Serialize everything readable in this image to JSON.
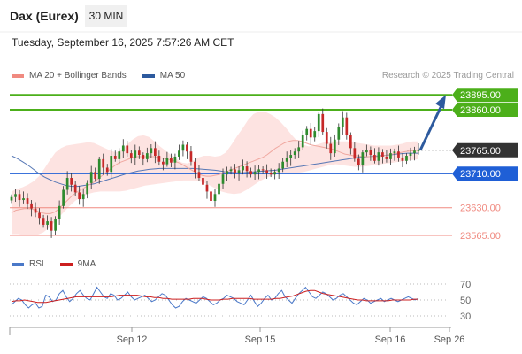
{
  "header": {
    "instrument": "Dax (Eurex)",
    "interval": "30 MIN",
    "timestamp": "Tuesday, September 16, 2025 7:57:26 AM CET"
  },
  "legend": [
    {
      "label": "MA 20 + Bollinger Bands",
      "color": "#f08a80"
    },
    {
      "label": "MA 50",
      "color": "#2d5a9e"
    }
  ],
  "credit": "Research © 2025 Trading Central",
  "colors": {
    "up": "#2e8b2e",
    "down": "#c62828",
    "band": "#fde3e1",
    "ma20": "#f0a8a0",
    "ma50": "#5677b5",
    "resistance": "#4caf1a",
    "support": "#1f5fd6",
    "minor_support": "#f08a80",
    "current": "#333333",
    "arrow": "#2d5a9e"
  },
  "chart_data": [
    {
      "type": "candlestick",
      "ylim": [
        23540,
        23910
      ],
      "x_labels": [
        "Sep 12",
        "Sep 15",
        "Sep 16",
        "Sep 26"
      ],
      "key_levels": [
        {
          "value": 23895,
          "label": "23895.00",
          "kind": "resistance"
        },
        {
          "value": 23860,
          "label": "23860.00",
          "kind": "resistance"
        },
        {
          "value": 23765,
          "label": "23765.00",
          "kind": "current"
        },
        {
          "value": 23710,
          "label": "23710.00",
          "kind": "support"
        },
        {
          "value": 23630,
          "label": "23630.00",
          "kind": "minor_support"
        },
        {
          "value": 23565,
          "label": "23565.00",
          "kind": "minor_support"
        }
      ],
      "close": [
        23655,
        23662,
        23648,
        23652,
        23640,
        23628,
        23618,
        23606,
        23590,
        23598,
        23576,
        23604,
        23634,
        23672,
        23700,
        23684,
        23666,
        23650,
        23662,
        23688,
        23714,
        23698,
        23744,
        23724,
        23714,
        23752,
        23744,
        23762,
        23776,
        23758,
        23748,
        23764,
        23754,
        23744,
        23758,
        23770,
        23752,
        23738,
        23732,
        23746,
        23736,
        23750,
        23764,
        23778,
        23762,
        23738,
        23714,
        23700,
        23684,
        23668,
        23646,
        23662,
        23686,
        23708,
        23716,
        23720,
        23712,
        23718,
        23727,
        23716,
        23708,
        23714,
        23720,
        23718,
        23712,
        23708,
        23714,
        23722,
        23738,
        23746,
        23754,
        23762,
        23772,
        23800,
        23815,
        23795,
        23810,
        23850,
        23808,
        23780,
        23758,
        23790,
        23820,
        23842,
        23800,
        23770,
        23745,
        23730,
        23760,
        23765,
        23754,
        23740,
        23760,
        23750,
        23744,
        23758,
        23762,
        23748,
        23740,
        23752,
        23758,
        23764,
        23765
      ],
      "ma20": [
        23618,
        23624,
        23626,
        23628,
        23628,
        23626,
        23622,
        23618,
        23616,
        23616,
        23620,
        23628,
        23638,
        23648,
        23658,
        23666,
        23672,
        23678,
        23684,
        23690,
        23698,
        23706,
        23714,
        23722,
        23730,
        23736,
        23740,
        23744,
        23748,
        23750,
        23750,
        23750,
        23750,
        23750,
        23748,
        23746,
        23744,
        23742,
        23738,
        23734,
        23728,
        23722,
        23716,
        23710,
        23706,
        23704,
        23704,
        23706,
        23708,
        23712,
        23716,
        23720,
        23724,
        23728,
        23732,
        23736,
        23740,
        23744,
        23748,
        23754,
        23762,
        23770,
        23776,
        23782,
        23786,
        23788,
        23788,
        23786,
        23782,
        23778,
        23776,
        23774,
        23772,
        23770,
        23768,
        23764,
        23760,
        23756,
        23754,
        23752,
        23752,
        23750,
        23750,
        23750,
        23750,
        23750,
        23752,
        23754,
        23756,
        23758,
        23760,
        23762,
        23763,
        23764,
        23765
      ],
      "bb_upper": [
        23668,
        23674,
        23678,
        23684,
        23692,
        23704,
        23722,
        23742,
        23760,
        23770,
        23776,
        23778,
        23780,
        23782,
        23784,
        23782,
        23776,
        23770,
        23764,
        23760,
        23766,
        23778,
        23790,
        23798,
        23800,
        23796,
        23786,
        23774,
        23764,
        23754,
        23744,
        23736,
        23734,
        23740,
        23748,
        23752,
        23752,
        23750,
        23752,
        23760,
        23778,
        23798,
        23816,
        23836,
        23850,
        23856,
        23856,
        23850,
        23842,
        23830,
        23816,
        23800,
        23786,
        23778,
        23774,
        23776,
        23780,
        23784,
        23786,
        23786,
        23786,
        23786,
        23784,
        23782,
        23780,
        23778,
        23776,
        23776,
        23776,
        23776,
        23778,
        23780,
        23784,
        23786,
        23786
      ],
      "bb_lower": [
        23568,
        23568,
        23566,
        23564,
        23566,
        23572,
        23584,
        23600,
        23616,
        23632,
        23646,
        23656,
        23662,
        23666,
        23668,
        23668,
        23668,
        23668,
        23670,
        23674,
        23678,
        23682,
        23684,
        23686,
        23688,
        23690,
        23692,
        23694,
        23694,
        23694,
        23690,
        23684,
        23676,
        23668,
        23664,
        23662,
        23664,
        23672,
        23682,
        23692,
        23700,
        23706,
        23710,
        23712,
        23712,
        23712,
        23714,
        23718,
        23722,
        23726,
        23730,
        23732,
        23730,
        23728,
        23726,
        23726,
        23728,
        23730,
        23732,
        23734,
        23736,
        23738,
        23740,
        23742,
        23744
      ],
      "ma50": [
        23752,
        23746,
        23738,
        23730,
        23720,
        23710,
        23702,
        23696,
        23690,
        23686,
        23682,
        23680,
        23680,
        23682,
        23684,
        23686,
        23690,
        23694,
        23698,
        23702,
        23706,
        23710,
        23713,
        23716,
        23718,
        23720,
        23721,
        23722,
        23722,
        23722,
        23722,
        23722,
        23722,
        23722,
        23721,
        23720,
        23719,
        23718,
        23716,
        23714,
        23713,
        23712,
        23712,
        23713,
        23714,
        23715,
        23716,
        23717,
        23718,
        23720,
        23722,
        23724,
        23726,
        23728,
        23730,
        23732,
        23734,
        23736,
        23738,
        23740,
        23742,
        23744,
        23746,
        23748,
        23749,
        23750,
        23751,
        23752,
        23753,
        23754,
        23756,
        23757,
        23758,
        23758,
        23758
      ]
    },
    {
      "type": "line",
      "ylim": [
        20,
        80
      ],
      "y_ticks": [
        70,
        50,
        30
      ],
      "series": [
        {
          "name": "RSI",
          "color": "#4a78c8",
          "values": [
            44,
            48,
            52,
            50,
            44,
            40,
            44,
            46,
            40,
            42,
            56,
            54,
            48,
            50,
            58,
            62,
            54,
            48,
            52,
            58,
            62,
            56,
            52,
            50,
            58,
            66,
            60,
            54,
            52,
            58,
            56,
            50,
            52,
            56,
            60,
            54,
            50,
            52,
            54,
            56,
            52,
            48,
            50,
            54,
            58,
            56,
            50,
            44,
            40,
            42,
            48,
            52,
            50,
            48,
            46,
            50,
            54,
            52,
            48,
            44,
            46,
            50,
            52,
            56,
            54,
            52,
            48,
            46,
            44,
            50,
            56,
            48,
            42,
            46,
            52,
            56,
            50,
            52,
            58,
            62,
            54,
            50,
            46,
            52,
            58,
            62,
            66,
            60,
            54,
            52,
            56,
            60,
            58,
            54,
            50,
            52,
            56,
            58,
            54,
            50,
            46,
            44,
            48,
            52,
            50,
            46,
            48,
            50,
            52,
            48,
            50,
            52,
            50,
            48,
            50,
            52,
            54,
            52,
            50,
            52
          ]
        },
        {
          "name": "9MA",
          "color": "#cc1f1f",
          "values": [
            48,
            49,
            49,
            50,
            49,
            48,
            47,
            47,
            47,
            48,
            49,
            50,
            51,
            52,
            53,
            54,
            54,
            54,
            54,
            54,
            54,
            54,
            54,
            54,
            55,
            56,
            56,
            56,
            56,
            56,
            55,
            54,
            54,
            53,
            53,
            52,
            52,
            51,
            51,
            51,
            51,
            51,
            52,
            52,
            52,
            51,
            50,
            50,
            50,
            51,
            51,
            52,
            52,
            52,
            52,
            52,
            51,
            51,
            51,
            51,
            51,
            52,
            52,
            53,
            54,
            55,
            57,
            59,
            61,
            62,
            62,
            60,
            58,
            57,
            56,
            55,
            54,
            53,
            52,
            51,
            50,
            50,
            49,
            49,
            49,
            49,
            49,
            49,
            50,
            50,
            50,
            50,
            50,
            51,
            51
          ]
        }
      ]
    }
  ]
}
